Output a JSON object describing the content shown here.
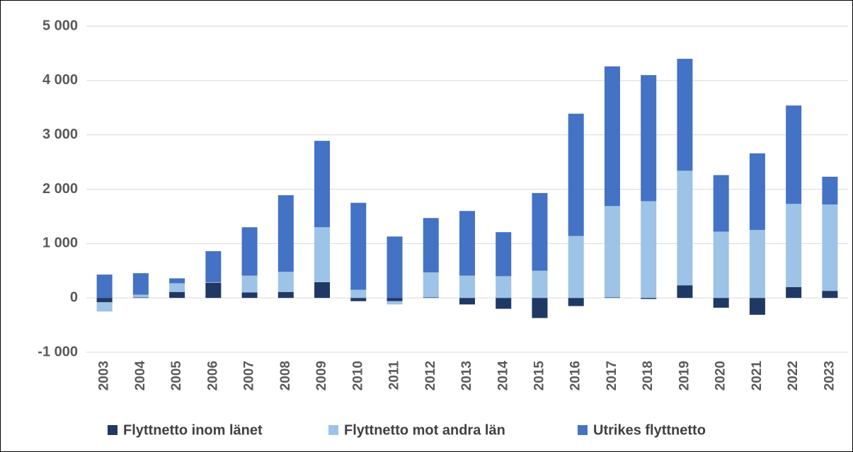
{
  "chart_data": {
    "type": "stacked_bar",
    "categories": [
      "2003",
      "2004",
      "2005",
      "2006",
      "2007",
      "2008",
      "2009",
      "2010",
      "2011",
      "2012",
      "2013",
      "2014",
      "2015",
      "2016",
      "2017",
      "2018",
      "2019",
      "2020",
      "2021",
      "2022",
      "2023"
    ],
    "series": [
      {
        "name": "Flyttnetto inom länet",
        "color": "#203864",
        "values": [
          -80,
          10,
          110,
          280,
          100,
          110,
          290,
          -60,
          -60,
          10,
          -120,
          -200,
          -370,
          -150,
          10,
          -20,
          230,
          -180,
          -310,
          200,
          130
        ]
      },
      {
        "name": "Flyttnetto mot andra län",
        "color": "#9dc3e6",
        "values": [
          -170,
          50,
          160,
          10,
          310,
          370,
          1010,
          150,
          -60,
          460,
          410,
          400,
          500,
          1140,
          1680,
          1780,
          2110,
          1220,
          1250,
          1530,
          1590
        ]
      },
      {
        "name": "Utrikes flyttnetto",
        "color": "#4472c4",
        "values": [
          430,
          395,
          90,
          570,
          890,
          1410,
          1590,
          1600,
          1130,
          1000,
          1190,
          810,
          1430,
          2250,
          2570,
          2320,
          2060,
          1040,
          1410,
          1810,
          510
        ]
      }
    ],
    "ylim": [
      -1000,
      5000
    ],
    "yticks": [
      {
        "value": -1000,
        "label": "-1 000"
      },
      0,
      {
        "value": 1000,
        "label": "1 000"
      },
      {
        "value": 2000,
        "label": "2 000"
      },
      {
        "value": 3000,
        "label": "3 000"
      },
      {
        "value": 4000,
        "label": "4 000"
      },
      {
        "value": 5000,
        "label": "5 000"
      }
    ],
    "grid": true,
    "legend": "bottom"
  }
}
